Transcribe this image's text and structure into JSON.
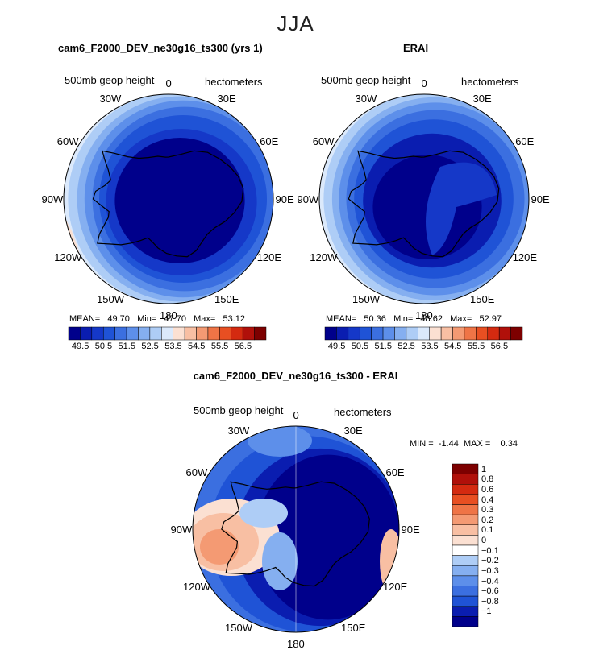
{
  "season_title": "JJA",
  "colors": {
    "scale": [
      "#00008b",
      "#0a1db0",
      "#1538c8",
      "#1f53d6",
      "#3b6fe0",
      "#5d8fea",
      "#85aff0",
      "#aecdf6",
      "#dbe9fb",
      "#fbe0d2",
      "#f8bfa3",
      "#f49a73",
      "#ef7446",
      "#e84f22",
      "#d42a10",
      "#b0100a",
      "#7d0000"
    ],
    "land_outline": "#000000"
  },
  "icons": {
    "coast": "coastline-outline"
  },
  "charts": [
    {
      "type": "heatmap",
      "title": "cam6_F2000_DEV_ne30g16_ts300 (yrs 1)",
      "variable": "500mb geop height",
      "units": "hectometers",
      "longitude_labels": [
        "0",
        "30E",
        "60E",
        "90E",
        "120E",
        "150E",
        "180",
        "150W",
        "120W",
        "90W",
        "60W",
        "30W"
      ],
      "stats": {
        "mean_label": "MEAN=",
        "mean": "49.70",
        "min_label": "Min=",
        "min": "47.70",
        "max_label": "Max=",
        "max": "53.12"
      },
      "colorbar_ticks": [
        "49.5",
        "50.5",
        "51.5",
        "52.5",
        "53.5",
        "54.5",
        "55.5",
        "56.5"
      ]
    },
    {
      "type": "heatmap",
      "title": "ERAI",
      "variable": "500mb geop height",
      "units": "hectometers",
      "longitude_labels": [
        "0",
        "30E",
        "60E",
        "90E",
        "120E",
        "150E",
        "180",
        "150W",
        "120W",
        "90W",
        "60W",
        "30W"
      ],
      "stats": {
        "mean_label": "MEAN=",
        "mean": "50.36",
        "min_label": "Min=",
        "min": "48.62",
        "max_label": "Max=",
        "max": "52.97"
      },
      "colorbar_ticks": [
        "49.5",
        "50.5",
        "51.5",
        "52.5",
        "53.5",
        "54.5",
        "55.5",
        "56.5"
      ]
    },
    {
      "type": "heatmap",
      "title": "cam6_F2000_DEV_ne30g16_ts300 - ERAI",
      "variable": "500mb geop height",
      "units": "hectometers",
      "longitude_labels": [
        "0",
        "30E",
        "60E",
        "90E",
        "120E",
        "150E",
        "180",
        "150W",
        "120W",
        "90W",
        "60W",
        "30W"
      ],
      "stats": {
        "min_label": "MIN =",
        "min": "-1.44",
        "max_label": "MAX =",
        "max": "0.34"
      },
      "colorbar_ticks": [
        "1",
        "0.8",
        "0.6",
        "0.4",
        "0.3",
        "0.2",
        "0.1",
        "0",
        "−0.1",
        "−0.2",
        "−0.3",
        "−0.4",
        "−0.6",
        "−0.8",
        "−1"
      ],
      "colorbar_colors": [
        "#7d0000",
        "#b0100a",
        "#d42a10",
        "#e84f22",
        "#ef7446",
        "#f49a73",
        "#f8bfa3",
        "#fbe0d2",
        "#ffffff",
        "#aecdf6",
        "#85aff0",
        "#5d8fea",
        "#3b6fe0",
        "#1f53d6",
        "#0a1db0",
        "#00008b"
      ]
    }
  ]
}
